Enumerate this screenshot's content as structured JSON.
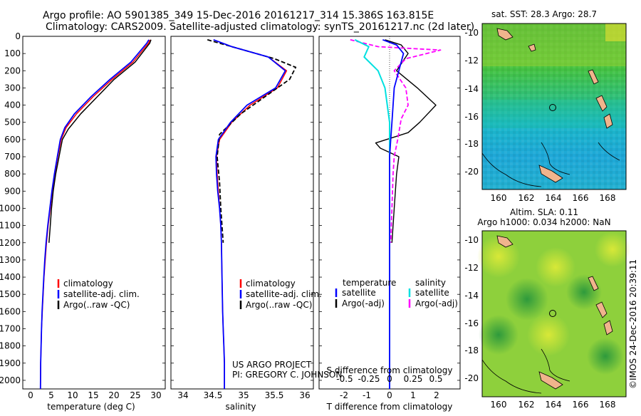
{
  "header": {
    "line1": "Argo profile: AO 5901385_349 15-Dec-2016 20161217_314 15.386S 163.815E",
    "line2": "Climatology: CARS2009. Satellite-adjusted climatology: synTS_20161217.nc (2d later)"
  },
  "colors": {
    "climatology": "#ff0000",
    "satellite": "#0000ff",
    "argo": "#000000",
    "sal_satellite": "#00e0e0",
    "sal_argo": "#ff00ff",
    "land": "#f0b48c"
  },
  "depth_ticks": [
    "0",
    "100",
    "200",
    "300",
    "400",
    "500",
    "600",
    "700",
    "800",
    "900",
    "1000",
    "1100",
    "1200",
    "1300",
    "1400",
    "1500",
    "1600",
    "1700",
    "1800",
    "1900",
    "2000"
  ],
  "temp_panel": {
    "xlabel": "temperature (deg C)",
    "xticks": [
      "0",
      "5",
      "10",
      "15",
      "20",
      "25",
      "30"
    ],
    "legend": [
      "climatology",
      "satellite-adj. clim.",
      "Argo(..raw -QC)"
    ]
  },
  "sal_panel": {
    "xlabel": "salinity",
    "xticks": [
      "34",
      "34.5",
      "35",
      "35.5",
      "36"
    ],
    "legend": [
      "climatology",
      "satellite-adj. clim.",
      "Argo(..raw -QC)"
    ],
    "credit1": "US ARGO PROJECT",
    "credit2": "PI: GREGORY C. JOHNSON"
  },
  "diff_panel": {
    "top_label": "S difference from climatology",
    "top_ticks": [
      "-0.5",
      "-0.25",
      "0",
      "0.25",
      "0.5"
    ],
    "xlabel": "T difference from climatology",
    "xticks": [
      "-2",
      "-1",
      "0",
      "1",
      "2"
    ],
    "legend_temp_title": "temperature",
    "legend_sal_title": "salinity",
    "legend_temp": [
      "satellite",
      "Argo(-adj)"
    ],
    "legend_sal": [
      "satellite",
      "Argo(-adj)"
    ]
  },
  "map_sst": {
    "title": "sat. SST: 28.3  Argo: 28.7",
    "lat_ticks": [
      "-10",
      "-12",
      "-14",
      "-16",
      "-18",
      "-20"
    ],
    "lon_ticks": [
      "160",
      "162",
      "164",
      "166",
      "168"
    ]
  },
  "map_sla": {
    "title1": "Altim. SLA: 0.11",
    "title2": "Argo h1000: 0.034 h2000: NaN",
    "lat_ticks": [
      "-10",
      "-12",
      "-14",
      "-16",
      "-18",
      "-20"
    ],
    "lon_ticks": [
      "160",
      "162",
      "164",
      "166",
      "168"
    ]
  },
  "side_label": "©IMOS 24-Dec-2016 20:39:11",
  "chart_data": [
    {
      "type": "line",
      "ylabel": "",
      "xlabel": "temperature (deg C)",
      "xlim": [
        -2,
        31
      ],
      "ylim": [
        2050,
        0
      ],
      "series": [
        {
          "name": "climatology",
          "x": [
            28.6,
            28.2,
            24.5,
            19.5,
            15,
            11,
            8.5,
            7.3,
            6.5,
            5.8,
            5.2,
            4.7,
            4.2,
            3.8,
            3.5,
            3.2,
            3.0,
            2.8,
            2.6,
            2.5,
            2.4,
            2.35
          ],
          "y": [
            20,
            40,
            150,
            250,
            350,
            450,
            530,
            600,
            700,
            800,
            900,
            1000,
            1100,
            1200,
            1300,
            1400,
            1500,
            1600,
            1700,
            1800,
            1900,
            2050
          ]
        },
        {
          "name": "satellite-adj. clim.",
          "x": [
            28.3,
            27.8,
            24,
            19,
            14.5,
            10.5,
            8.2,
            7.1,
            6.4,
            5.7,
            5.1,
            4.6,
            4.1,
            3.7,
            3.4,
            3.15,
            2.95,
            2.75,
            2.6,
            2.5,
            2.4,
            2.35
          ],
          "y": [
            20,
            40,
            150,
            250,
            350,
            450,
            530,
            600,
            700,
            800,
            900,
            1000,
            1100,
            1200,
            1300,
            1400,
            1500,
            1600,
            1700,
            1800,
            1900,
            2050
          ]
        },
        {
          "name": "Argo(..raw -QC)",
          "x": [
            28.8,
            28.5,
            25,
            20,
            16,
            12,
            9,
            7.6,
            7.2,
            6.8,
            6.0,
            5.4,
            5.0,
            4.7,
            4.4
          ],
          "y": [
            20,
            40,
            150,
            250,
            350,
            450,
            540,
            600,
            650,
            700,
            800,
            900,
            1000,
            1100,
            1200
          ]
        }
      ]
    },
    {
      "type": "line",
      "xlabel": "salinity",
      "xlim": [
        33.8,
        36.1
      ],
      "ylim": [
        2050,
        0
      ],
      "series": [
        {
          "name": "climatology",
          "x": [
            34.5,
            34.8,
            35.4,
            35.7,
            35.55,
            35.1,
            34.8,
            34.6,
            34.55,
            34.56,
            34.58,
            34.6,
            34.62,
            34.63,
            34.64,
            34.65,
            34.66,
            34.67,
            34.68,
            34.68
          ],
          "y": [
            20,
            60,
            120,
            200,
            300,
            400,
            500,
            600,
            700,
            800,
            900,
            1000,
            1100,
            1200,
            1400,
            1600,
            1700,
            1800,
            1900,
            2050
          ]
        },
        {
          "name": "satellite-adj. clim.",
          "x": [
            34.5,
            34.8,
            35.4,
            35.68,
            35.52,
            35.05,
            34.78,
            34.58,
            34.54,
            34.55,
            34.57,
            34.6,
            34.62,
            34.63,
            34.64,
            34.65,
            34.66,
            34.67,
            34.68,
            34.68
          ],
          "y": [
            20,
            60,
            120,
            200,
            300,
            400,
            500,
            600,
            700,
            800,
            900,
            1000,
            1100,
            1200,
            1400,
            1600,
            1700,
            1800,
            1900,
            2050
          ]
        },
        {
          "name": "Argo(..raw -QC)",
          "x": [
            34.4,
            34.6,
            35.0,
            35.5,
            35.85,
            35.75,
            35.35,
            34.95,
            34.6,
            34.56,
            34.6,
            34.62,
            34.64,
            34.66
          ],
          "y": [
            20,
            40,
            80,
            130,
            180,
            250,
            350,
            450,
            570,
            700,
            850,
            1000,
            1100,
            1200
          ]
        }
      ]
    },
    {
      "type": "line",
      "xlabel": "T difference from climatology",
      "top_xlabel": "S difference from climatology",
      "xlim": [
        -2.5,
        2.5
      ],
      "ylim": [
        2050,
        0
      ],
      "series": [
        {
          "name": "satellite",
          "x": [
            -0.3,
            0.3,
            0.6,
            0.4,
            0.2,
            0.15,
            0.1,
            0.05,
            0,
            0,
            0,
            0
          ],
          "y": [
            20,
            50,
            100,
            200,
            300,
            400,
            500,
            600,
            700,
            800,
            1000,
            2050
          ]
        },
        {
          "name": "Argo(-adj)",
          "x": [
            -0.2,
            0.5,
            0.8,
            0.3,
            1.2,
            2.0,
            1.3,
            0.8,
            -0.6,
            -0.4,
            0.4,
            0.3,
            0.2,
            0.1
          ],
          "y": [
            20,
            50,
            100,
            200,
            300,
            400,
            500,
            560,
            620,
            650,
            700,
            800,
            1000,
            1200
          ]
        },
        {
          "name": "satellite",
          "x": [
            -1.5,
            -0.9,
            -1.1,
            -0.5,
            -0.2,
            0,
            0,
            0,
            0
          ],
          "y": [
            20,
            60,
            120,
            200,
            300,
            500,
            700,
            1000,
            2050
          ]
        },
        {
          "name": "Argo(-adj)",
          "x": [
            -1.7,
            -0.5,
            2.2,
            0.7,
            0.2,
            0.7,
            0.8,
            0.5,
            0.35,
            0.2,
            0.15,
            0.1,
            0.05
          ],
          "y": [
            20,
            60,
            80,
            130,
            200,
            300,
            400,
            480,
            600,
            700,
            800,
            1000,
            1200
          ]
        }
      ]
    }
  ]
}
